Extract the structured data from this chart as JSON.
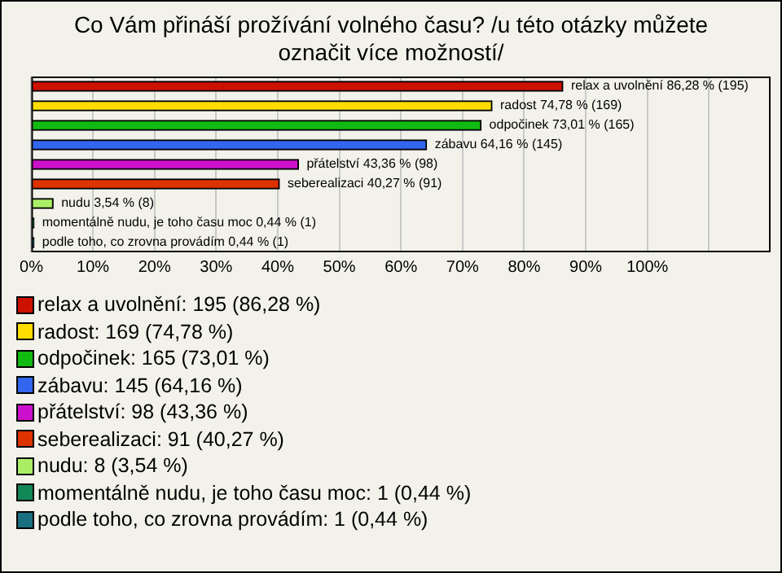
{
  "chart_data": {
    "type": "bar",
    "orientation": "horizontal",
    "title": "Co Vám přináší prožívání volného času? /u této otázky můžete označit více možností/",
    "categories": [
      "relax a uvolnění",
      "radost",
      "odpočinek",
      "zábavu",
      "přátelství",
      "seberealizaci",
      "nudu",
      "momentálně nudu, je toho času moc",
      "podle toho, co zrovna provádím"
    ],
    "values": [
      86.28,
      74.78,
      73.01,
      64.16,
      43.36,
      40.27,
      3.54,
      0.44,
      0.44
    ],
    "colors": [
      "#cc1100",
      "#ffdd00",
      "#11bb11",
      "#3366ee",
      "#cc11cc",
      "#dd3300",
      "#aaee66",
      "#118855",
      "#1a7080"
    ],
    "value_labels": [
      "86,28 % (195)",
      "74,78 % (169)",
      "73,01 % (165)",
      "64,16 % (145)",
      "43,36 % (98)",
      "40,27 % (91)",
      "3,54 % (8)",
      "0,44 % (1)",
      "0,44 % (1)"
    ],
    "annotations": [
      "relax a uvolnění: 195 (86,28 %)",
      "radost: 169 (74,78 %)",
      "odpočinek: 165 (73,01 %)",
      "zábavu: 145 (64,16 %)",
      "přátelství: 98 (43,36 %)",
      "seberealizaci: 91 (40,27 %)",
      "nudu: 8 (3,54 %)",
      "momentálně nudu, je toho času moc: 1 (0,44 %)",
      "podle toho, co zrovna provádím: 1 (0,44 %)"
    ],
    "xlim": [
      0,
      120
    ],
    "xticks": [
      {
        "value": 0,
        "label": "0%"
      },
      {
        "value": 10,
        "label": "10%"
      },
      {
        "value": 20,
        "label": "20%"
      },
      {
        "value": 30,
        "label": "30%"
      },
      {
        "value": 40,
        "label": "40%"
      },
      {
        "value": 50,
        "label": "50%"
      },
      {
        "value": 60,
        "label": "60%"
      },
      {
        "value": 70,
        "label": "70%"
      },
      {
        "value": 80,
        "label": "80%"
      },
      {
        "value": 90,
        "label": "90%"
      },
      {
        "value": 100,
        "label": "100%"
      },
      {
        "value": 110,
        "label": null
      }
    ],
    "grid": "x",
    "tick_labels": "x"
  }
}
